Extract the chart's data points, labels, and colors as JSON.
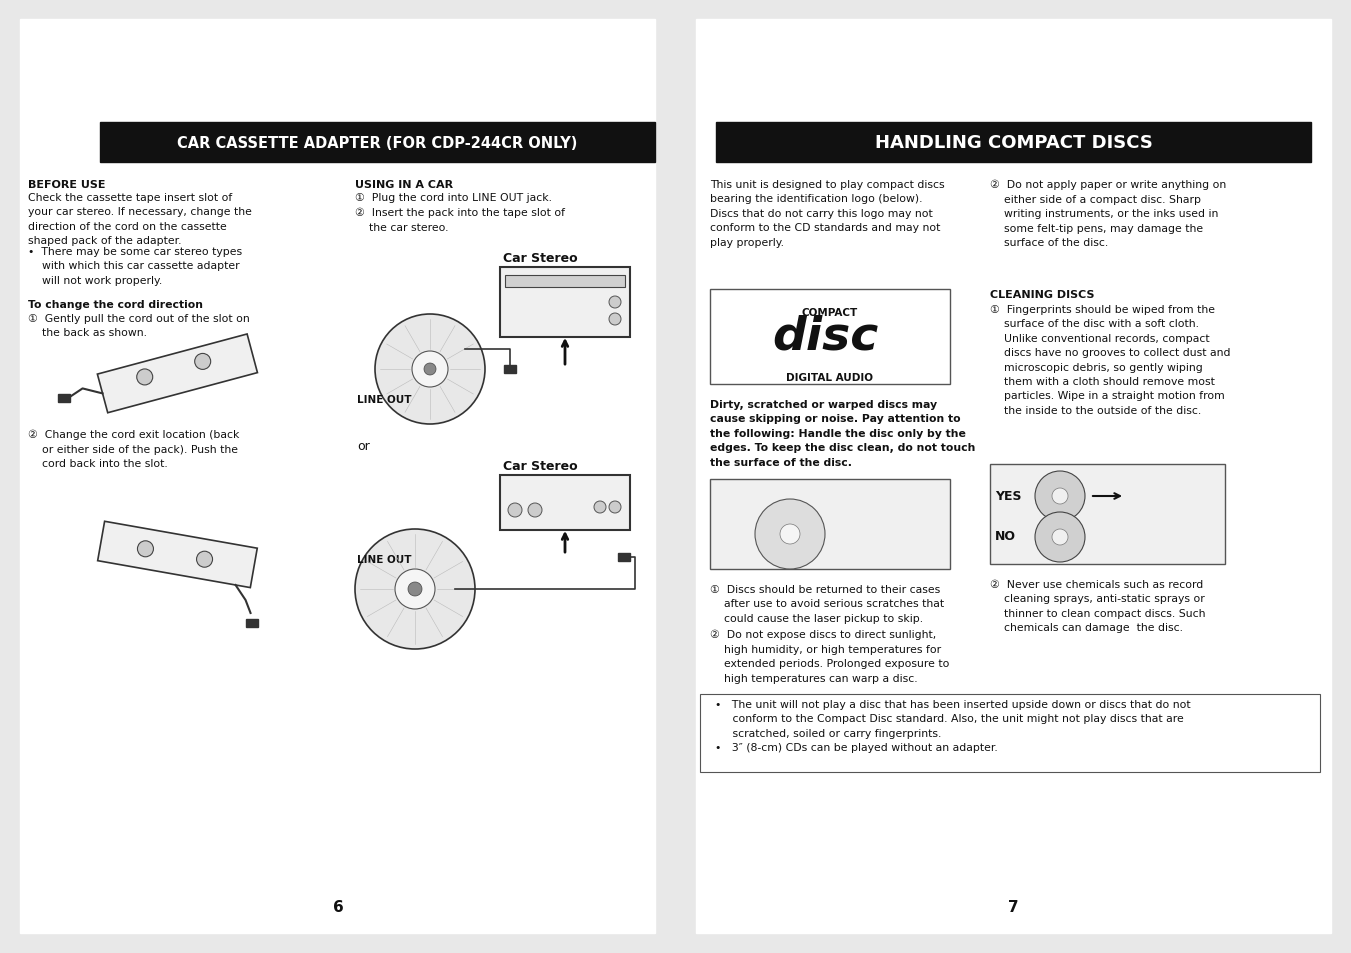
{
  "bg_color": "#ffffff",
  "header_bg": "#111111",
  "header_fg": "#ffffff",
  "header1_text": "CAR CASSETTE ADAPTER (FOR CDP-244CR ONLY)",
  "header2_text": "HANDLING COMPACT DISCS",
  "page_num_left": "6",
  "page_num_right": "7"
}
